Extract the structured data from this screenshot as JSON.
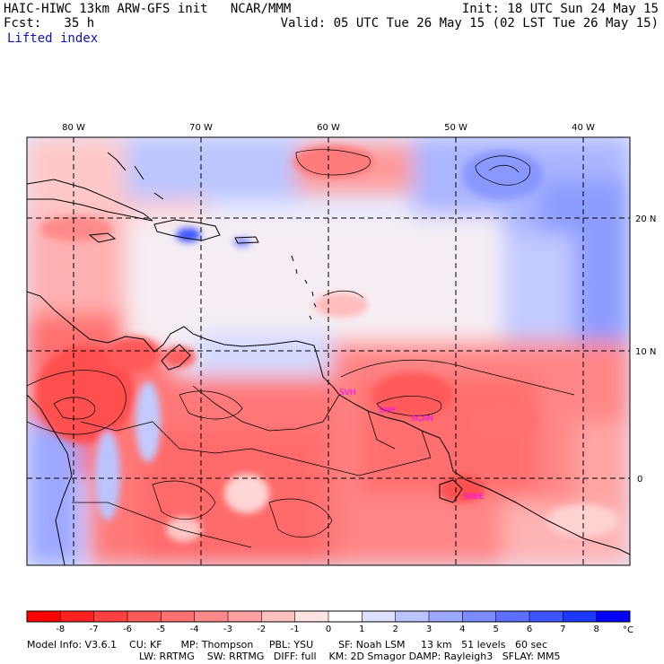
{
  "header": {
    "left_line1": "HAIC-HIWC 13km ARW-GFS init   NCAR/MMM",
    "left_line2": "Fcst:   35 h",
    "field": "Lifted index",
    "right_line1": "Init: 18 UTC Sun 24 May 15",
    "right_line2": "Valid: 05 UTC Tue 26 May 15 (02 LST Tue 26 May 15)"
  },
  "map": {
    "lon_labels": [
      "80 W",
      "70 W",
      "60 W",
      "50 W",
      "40 W"
    ],
    "lat_labels": [
      "20 N",
      "10 N",
      "0"
    ],
    "stations": [
      "SVH",
      "SMP",
      "SCAN",
      "SBBE"
    ]
  },
  "colorbar": {
    "ticks": [
      "-8",
      "-7",
      "-6",
      "-5",
      "-4",
      "-3",
      "-2",
      "-1",
      "0",
      "1",
      "2",
      "3",
      "4",
      "5",
      "6",
      "7",
      "8"
    ],
    "unit": "°C",
    "colors": [
      "#ff0000",
      "#ff2020",
      "#ff4040",
      "#ff5a5a",
      "#ff7070",
      "#ff8888",
      "#ffa0a0",
      "#ffc0c0",
      "#ffe2e2",
      "#ffffff",
      "#dce0ff",
      "#bcc4ff",
      "#9ca8ff",
      "#7c8cff",
      "#5c70ff",
      "#3c54ff",
      "#1c38ff",
      "#0000ff"
    ]
  },
  "footer": {
    "line1": "Model Info: V3.6.1    CU: KF      MP: Thompson     PBL: YSU        SF: Noah LSM     13 km   51 levels   60 sec",
    "line2": "LW: RRTMG    SW: RRTMG   DIFF: full    KM: 2D Smagor DAMP: Rayleigh3   SFLAY: MM5"
  }
}
